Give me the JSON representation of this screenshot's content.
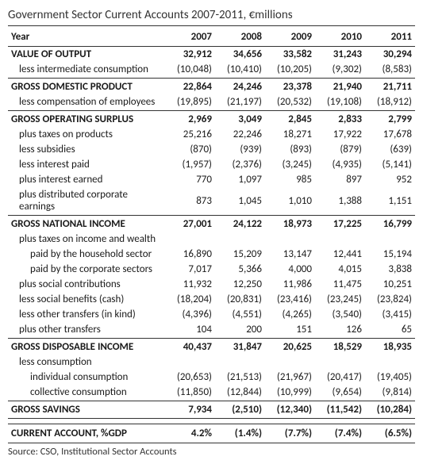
{
  "title": "Government Sector Current Accounts 2007-2011, €millions",
  "header": {
    "year": "Year",
    "y2007": "2007",
    "y2008": "2008",
    "y2009": "2009",
    "y2010": "2010",
    "y2011": "2011"
  },
  "rows": {
    "value_of_output": {
      "label": "VALUE OF OUTPUT",
      "v": [
        "32,912",
        "34,656",
        "33,582",
        "31,243",
        "30,294"
      ]
    },
    "less_intermediate": {
      "label": "less intermediate consumption",
      "v": [
        "(10,048)",
        "(10,410)",
        "(10,205)",
        "(9,302)",
        "(8,583)"
      ]
    },
    "gdp": {
      "label": "GROSS DOMESTIC PRODUCT",
      "v": [
        "22,864",
        "24,246",
        "23,378",
        "21,940",
        "21,711"
      ]
    },
    "less_comp_employees": {
      "label": "less compensation of employees",
      "v": [
        "(19,895)",
        "(21,197)",
        "(20,532)",
        "(19,108)",
        "(18,912)"
      ]
    },
    "gross_op_surplus": {
      "label": "GROSS OPERATING SURPLUS",
      "v": [
        "2,969",
        "3,049",
        "2,845",
        "2,833",
        "2,799"
      ]
    },
    "plus_taxes_products": {
      "label": "plus taxes on products",
      "v": [
        "25,216",
        "22,246",
        "18,271",
        "17,922",
        "17,678"
      ]
    },
    "less_subsidies": {
      "label": "less subsidies",
      "v": [
        "(870)",
        "(939)",
        "(893)",
        "(879)",
        "(639)"
      ]
    },
    "less_interest_paid": {
      "label": "less interest paid",
      "v": [
        "(1,957)",
        "(2,376)",
        "(3,245)",
        "(4,935)",
        "(5,141)"
      ]
    },
    "plus_interest_earned": {
      "label": "plus interest earned",
      "v": [
        "770",
        "1,097",
        "985",
        "897",
        "952"
      ]
    },
    "plus_dist_corp_earn": {
      "label": "plus distributed corporate earnings",
      "v": [
        "873",
        "1,045",
        "1,010",
        "1,388",
        "1,151"
      ]
    },
    "gni": {
      "label": "GROSS NATIONAL INCOME",
      "v": [
        "27,001",
        "24,122",
        "18,973",
        "17,225",
        "16,799"
      ]
    },
    "plus_taxes_inc_wealth": {
      "label": "plus taxes on income and wealth",
      "v": [
        "",
        "",
        "",
        "",
        ""
      ]
    },
    "paid_household": {
      "label": "paid by the household sector",
      "v": [
        "16,890",
        "15,209",
        "13,147",
        "12,441",
        "15,194"
      ]
    },
    "paid_corporate": {
      "label": "paid by the corporate sectors",
      "v": [
        "7,017",
        "5,366",
        "4,000",
        "4,015",
        "3,838"
      ]
    },
    "plus_social_contrib": {
      "label": "plus social contributions",
      "v": [
        "11,932",
        "12,250",
        "11,986",
        "11,475",
        "10,251"
      ]
    },
    "less_social_benefits": {
      "label": "less social benefits (cash)",
      "v": [
        "(18,204)",
        "(20,831)",
        "(23,416)",
        "(23,245)",
        "(23,824)"
      ]
    },
    "less_other_inkind": {
      "label": "less other transfers (in kind)",
      "v": [
        "(4,396)",
        "(4,551)",
        "(4,265)",
        "(3,540)",
        "(3,415)"
      ]
    },
    "plus_other_transfers": {
      "label": "plus other transfers",
      "v": [
        "104",
        "200",
        "151",
        "126",
        "65"
      ]
    },
    "gross_disp_income": {
      "label": "GROSS DISPOSABLE INCOME",
      "v": [
        "40,437",
        "31,847",
        "20,625",
        "18,529",
        "18,935"
      ]
    },
    "less_consumption": {
      "label": "less consumption",
      "v": [
        "",
        "",
        "",
        "",
        ""
      ]
    },
    "individual_cons": {
      "label": "individual consumption",
      "v": [
        "(20,653)",
        "(21,513)",
        "(21,967)",
        "(20,417)",
        "(19,405)"
      ]
    },
    "collective_cons": {
      "label": "collective consumption",
      "v": [
        "(11,850)",
        "(12,844)",
        "(10,999)",
        "(9,654)",
        "(9,814)"
      ]
    },
    "gross_savings": {
      "label": "GROSS SAVINGS",
      "v": [
        "7,934",
        "(2,510)",
        "(12,340)",
        "(11,542)",
        "(10,284)"
      ]
    },
    "current_account_gdp": {
      "label": "CURRENT ACCOUNT, %GDP",
      "v": [
        "4.2%",
        "(1.4%)",
        "(7.7%)",
        "(7.4%)",
        "(6.5%)"
      ]
    }
  },
  "source": "Source: CSO, Institutional Sector Accounts"
}
